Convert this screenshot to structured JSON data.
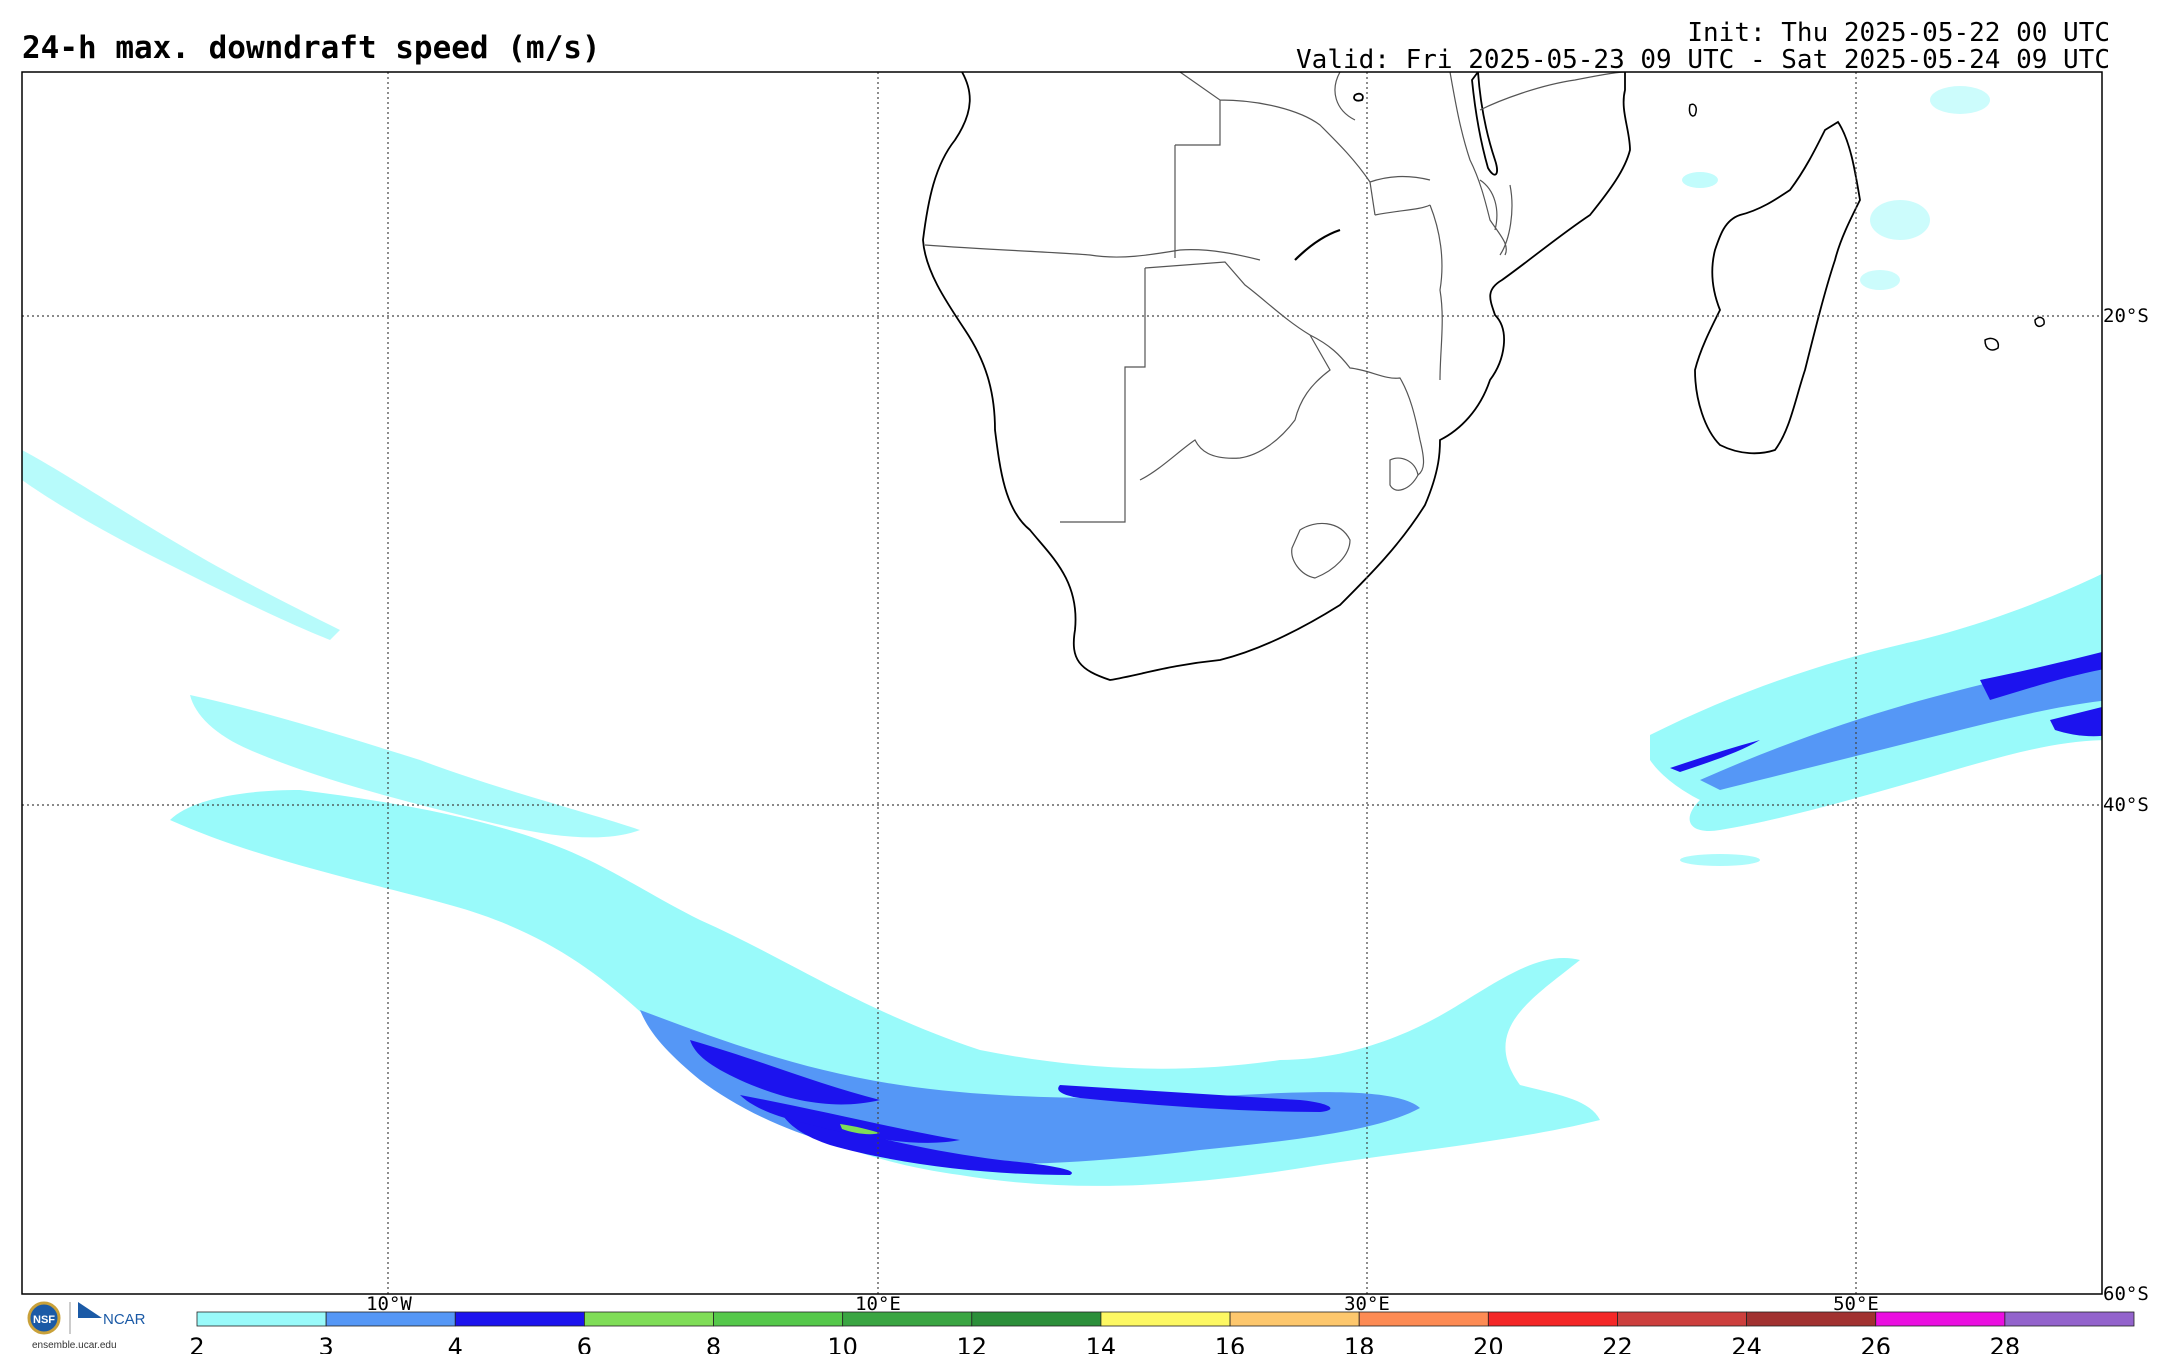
{
  "header": {
    "title": "24-h max. downdraft speed (m/s)",
    "init": "Init: Thu 2025-05-22 00 UTC",
    "valid": "Valid: Fri 2025-05-23 09 UTC - Sat 2025-05-24 09 UTC"
  },
  "map": {
    "region": "Southern Africa and South Atlantic / Southwest Indian Ocean",
    "longitude_labels": [
      "10°W",
      "10°E",
      "30°E",
      "50°E"
    ],
    "latitude_labels": [
      "20°S",
      "40°S",
      "60°S"
    ],
    "gridlines": "dotted",
    "colors": {
      "land_outline": "#000000",
      "border": "#555555"
    }
  },
  "colorbar": {
    "ticks": [
      "2",
      "3",
      "4",
      "6",
      "8",
      "10",
      "12",
      "14",
      "16",
      "18",
      "20",
      "22",
      "24",
      "26",
      "28"
    ],
    "colors": [
      "#99fafa",
      "#5597f6",
      "#1c13ee",
      "#7fdd57",
      "#55c84a",
      "#3aa542",
      "#2c8f3a",
      "#fdf863",
      "#fdc76d",
      "#fd8b54",
      "#f42727",
      "#cc3f3d",
      "#a13130",
      "#ea0ee0",
      "#9363cc"
    ]
  },
  "logos": {
    "nsf": "NSF",
    "ncar": "NCAR",
    "url": "ensemble.ucar.edu"
  }
}
